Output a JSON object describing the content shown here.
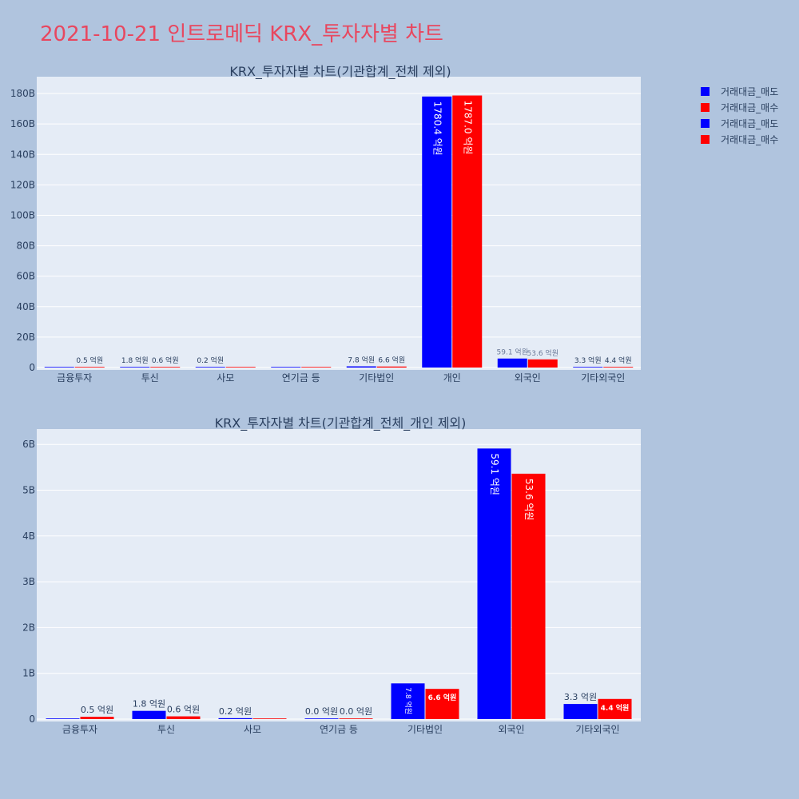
{
  "page_title": "2021-10-21 인트로메딕 KRX_투자자별 차트",
  "colors": {
    "sell": "#0000ff",
    "buy": "#ff0000"
  },
  "legend": [
    "거래대금_매도",
    "거래대금_매수",
    "거래대금_매도",
    "거래대금_매수"
  ],
  "chart_data": [
    {
      "type": "bar",
      "title": "KRX_투자자별 차트(기관합계_전체 제외)",
      "categories": [
        "금융투자",
        "투신",
        "사모",
        "연기금 등",
        "기타법인",
        "개인",
        "외국인",
        "기타외국인"
      ],
      "ylim": [
        0,
        190
      ],
      "yticks": [
        0,
        20,
        40,
        60,
        80,
        100,
        120,
        140,
        160,
        180
      ],
      "ytick_labels": [
        "0",
        "20B",
        "40B",
        "60B",
        "80B",
        "100B",
        "120B",
        "140B",
        "160B",
        "180B"
      ],
      "unit": "억원 / 10 = B",
      "series": [
        {
          "name": "거래대금_매도",
          "color": "#0000ff",
          "values": [
            0,
            0.18,
            0.02,
            0,
            0.78,
            178.04,
            5.91,
            0.33
          ],
          "labels": [
            "",
            "1.8 억원",
            "0.2 억원",
            "",
            "7.8 억원",
            "1780.4 억원",
            "59.1 억원",
            "3.3 억원"
          ]
        },
        {
          "name": "거래대금_매수",
          "color": "#ff0000",
          "values": [
            0.05,
            0.06,
            0,
            0,
            0.66,
            178.7,
            5.36,
            0.44
          ],
          "labels": [
            "0.5 억원",
            "0.6 억원",
            "",
            "",
            "6.6 억원",
            "1787.0 억원",
            "53.6 억원",
            "4.4 억원"
          ]
        }
      ]
    },
    {
      "type": "bar",
      "title": "KRX_투자자별 차트(기관합계_전체_개인 제외)",
      "categories": [
        "금융투자",
        "투신",
        "사모",
        "연기금 등",
        "기타법인",
        "외국인",
        "기타외국인"
      ],
      "ylim": [
        0,
        6.3
      ],
      "yticks": [
        0,
        1,
        2,
        3,
        4,
        5,
        6
      ],
      "ytick_labels": [
        "0",
        "1B",
        "2B",
        "3B",
        "4B",
        "5B",
        "6B"
      ],
      "series": [
        {
          "name": "거래대금_매도",
          "color": "#0000ff",
          "values": [
            0,
            0.18,
            0.02,
            0,
            0.78,
            5.91,
            0.33
          ],
          "labels": [
            "",
            "1.8 억원",
            "0.2 억원",
            "0.0 억원",
            "7.8 억원",
            "59.1 억원",
            "3.3 억원"
          ]
        },
        {
          "name": "거래대금_매수",
          "color": "#ff0000",
          "values": [
            0.05,
            0.06,
            0,
            0,
            0.66,
            5.36,
            0.44
          ],
          "labels": [
            "0.5 억원",
            "0.6 억원",
            "",
            "0.0 억원",
            "6.6 억원",
            "53.6 억원",
            "4.4 억원"
          ]
        }
      ]
    }
  ]
}
